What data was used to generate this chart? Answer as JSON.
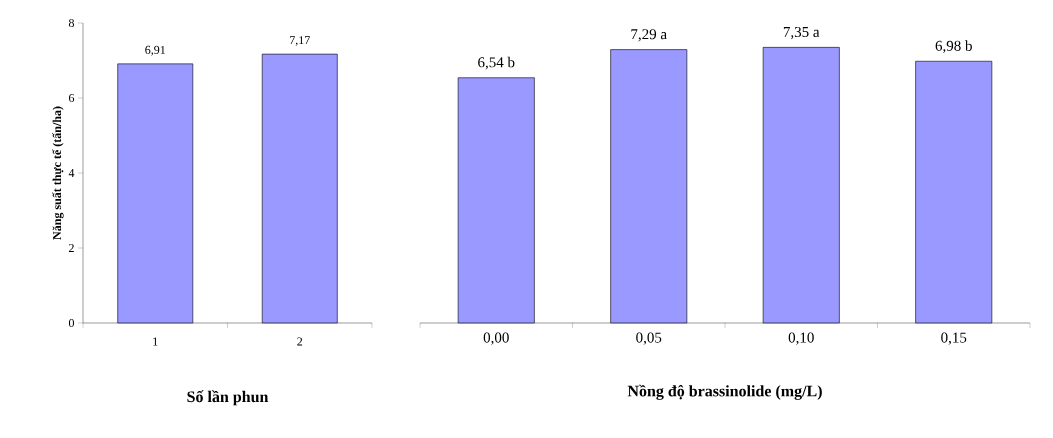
{
  "chart_data": [
    {
      "type": "bar",
      "categories": [
        "1",
        "2"
      ],
      "values": [
        6.91,
        7.17
      ],
      "value_labels": [
        "6,91",
        "7,17"
      ],
      "color": "#9999ff",
      "ylim": [
        0,
        8
      ],
      "yticks": [
        0,
        2,
        4,
        6,
        8
      ],
      "xlabel": "Số lần phun",
      "ylabel": "Năng suất thực tế (tấn/ha)"
    },
    {
      "type": "bar",
      "categories": [
        "0,00",
        "0,05",
        "0,10",
        "0,15"
      ],
      "values": [
        6.54,
        7.29,
        7.35,
        6.98
      ],
      "value_labels": [
        "6,54 b",
        "7,29 a",
        "7,35 a",
        "6,98 b"
      ],
      "color": "#9999ff",
      "ylim": [
        0,
        8
      ],
      "xlabel": "Nồng độ brassinolide (mg/L)",
      "tick_labels": "x"
    }
  ]
}
